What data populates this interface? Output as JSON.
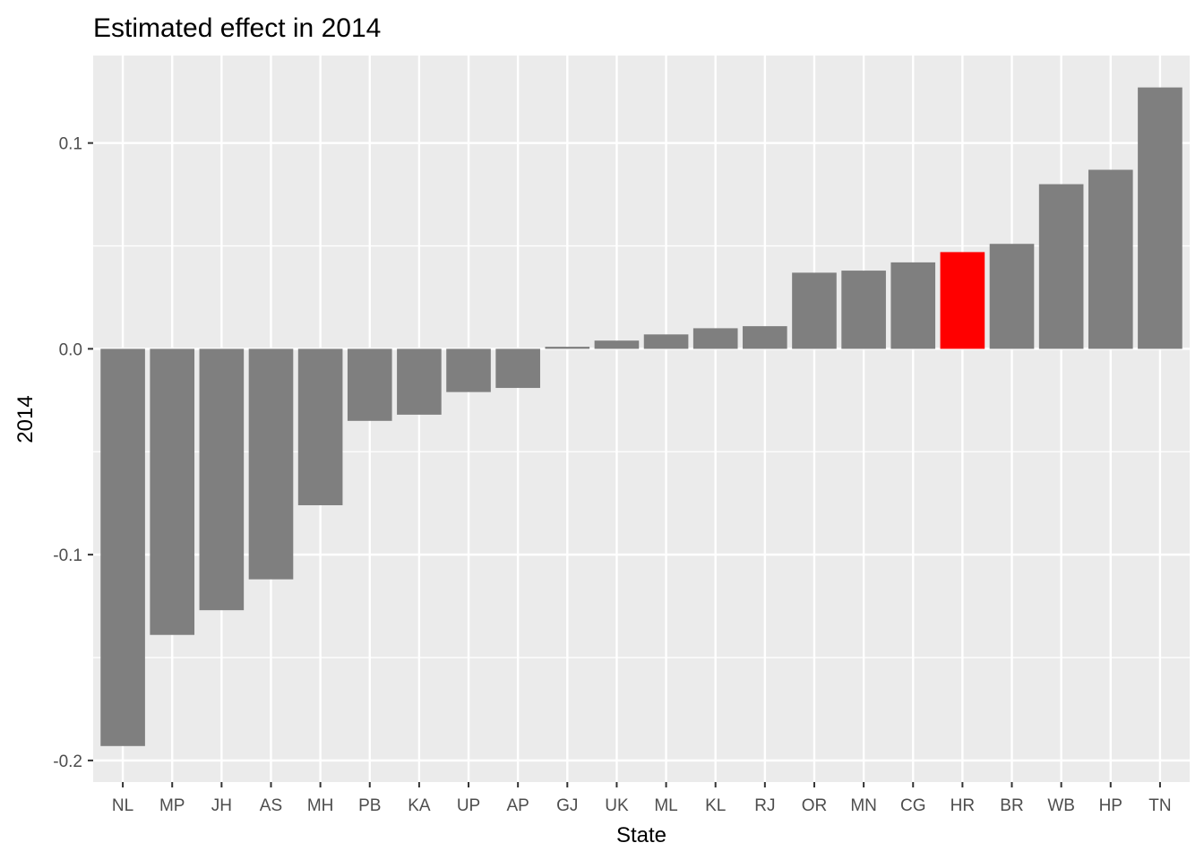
{
  "chart_data": {
    "type": "bar",
    "title": "Estimated effect in 2014",
    "xlabel": "State",
    "ylabel": "2014",
    "categories": [
      "NL",
      "MP",
      "JH",
      "AS",
      "MH",
      "PB",
      "KA",
      "UP",
      "AP",
      "GJ",
      "UK",
      "ML",
      "KL",
      "RJ",
      "OR",
      "MN",
      "CG",
      "HR",
      "BR",
      "WB",
      "HP",
      "TN"
    ],
    "values": [
      -0.193,
      -0.139,
      -0.127,
      -0.112,
      -0.076,
      -0.035,
      -0.032,
      -0.021,
      -0.019,
      0.001,
      0.004,
      0.007,
      0.01,
      0.011,
      0.037,
      0.038,
      0.042,
      0.047,
      0.051,
      0.08,
      0.087,
      0.127
    ],
    "highlight": "HR",
    "ylim": [
      -0.2105,
      0.1425
    ],
    "yticks": [
      -0.2,
      -0.1,
      0.0,
      0.1
    ],
    "ytick_labels": [
      "-0.2",
      "-0.1",
      "0.0",
      "0.1"
    ],
    "grid": true,
    "colors": {
      "bar": "#7f7f7f",
      "highlight": "#ff0000",
      "panel": "#ebebeb",
      "grid": "#ffffff"
    }
  }
}
